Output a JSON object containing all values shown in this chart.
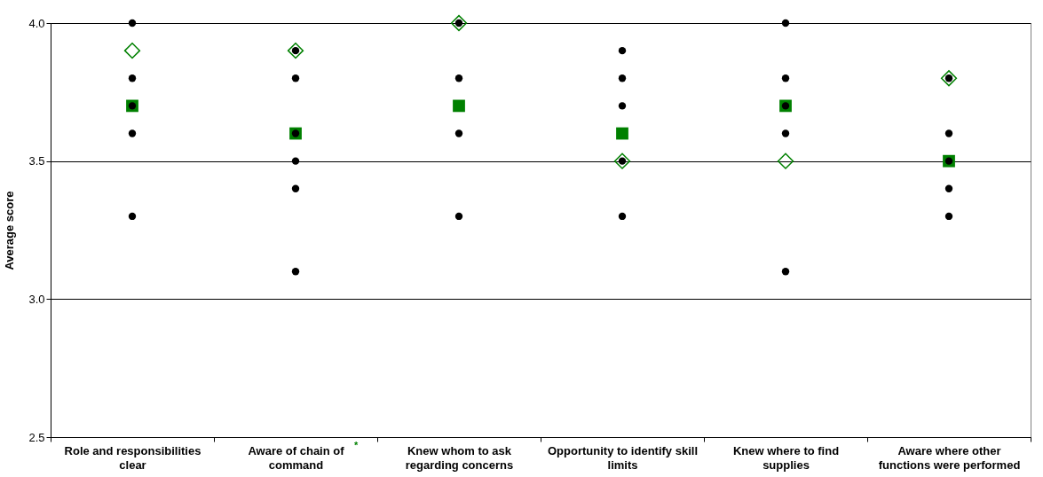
{
  "chart_data": {
    "type": "scatter",
    "categories": [
      "Role and responsibilities clear",
      "Aware of chain of command",
      "Knew whom to ask regarding concerns",
      "Opportunity to identify skill limits",
      "Knew where to find supplies",
      "Aware where other functions were performed"
    ],
    "ylabel": "Average score",
    "ylim": [
      2.5,
      4.0
    ],
    "yticks": [
      {
        "value": 2.5,
        "label": "2.5"
      },
      {
        "value": 3.0,
        "label": "3.0"
      },
      {
        "value": 3.5,
        "label": "3.5"
      },
      {
        "value": 4.0,
        "label": "4.0"
      }
    ],
    "grid": "y",
    "annotations": [
      "*"
    ],
    "series": [
      {
        "type": "scatter",
        "marker": "circle",
        "color": "#000000",
        "x": [
          "Role and responsibilities clear",
          "Role and responsibilities clear",
          "Role and responsibilities clear",
          "Role and responsibilities clear",
          "Role and responsibilities clear",
          "Aware of chain of command",
          "Aware of chain of command",
          "Aware of chain of command",
          "Aware of chain of command",
          "Aware of chain of command",
          "Aware of chain of command",
          "Knew whom to ask regarding concerns",
          "Knew whom to ask regarding concerns",
          "Knew whom to ask regarding concerns",
          "Knew whom to ask regarding concerns",
          "Opportunity to identify skill limits",
          "Opportunity to identify skill limits",
          "Opportunity to identify skill limits",
          "Opportunity to identify skill limits",
          "Opportunity to identify skill limits",
          "Knew where to find supplies",
          "Knew where to find supplies",
          "Knew where to find supplies",
          "Knew where to find supplies",
          "Knew where to find supplies",
          "Aware where other functions were performed",
          "Aware where other functions were performed",
          "Aware where other functions were performed",
          "Aware where other functions were performed",
          "Aware where other functions were performed"
        ],
        "values": [
          4.0,
          3.8,
          3.7,
          3.6,
          3.3,
          3.9,
          3.8,
          3.6,
          3.5,
          3.4,
          3.1,
          4.0,
          3.8,
          3.6,
          3.3,
          3.9,
          3.8,
          3.7,
          3.5,
          3.3,
          4.0,
          3.8,
          3.7,
          3.6,
          3.1,
          3.8,
          3.6,
          3.5,
          3.4,
          3.3
        ]
      },
      {
        "type": "scatter",
        "marker": "square",
        "color": "#008000",
        "values": [
          3.7,
          3.6,
          3.7,
          3.6,
          3.7,
          3.5
        ]
      },
      {
        "type": "scatter",
        "marker": "diamond",
        "color": "#008000",
        "values": [
          3.9,
          3.9,
          4.0,
          3.5,
          3.5,
          3.8
        ]
      }
    ]
  }
}
